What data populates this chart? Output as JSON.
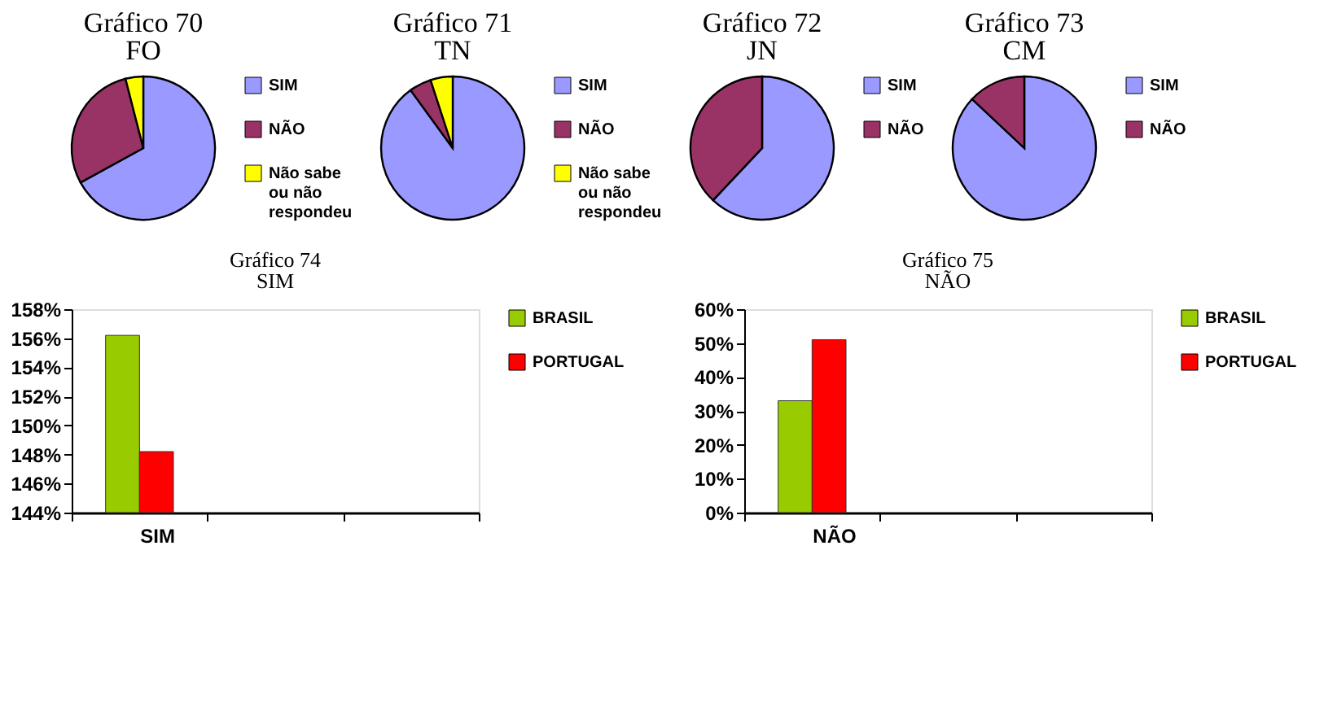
{
  "chart_data": [
    {
      "type": "pie",
      "title": "Gráfico 70",
      "subtitle": "FO",
      "categories": [
        "SIM",
        "NÃO",
        "Não sabe ou não respondeu"
      ],
      "values": [
        67,
        29,
        4
      ],
      "colors": [
        "#9999ff",
        "#993366",
        "#ffff00"
      ],
      "legend": "right"
    },
    {
      "type": "pie",
      "title": "Gráfico 71",
      "subtitle": "TN",
      "categories": [
        "SIM",
        "NÃO",
        "Não sabe ou não respondeu"
      ],
      "values": [
        90,
        5,
        5
      ],
      "colors": [
        "#9999ff",
        "#993366",
        "#ffff00"
      ],
      "legend": "right"
    },
    {
      "type": "pie",
      "title": "Gráfico 72",
      "subtitle": "JN",
      "categories": [
        "SIM",
        "NÃO"
      ],
      "values": [
        62,
        38
      ],
      "colors": [
        "#9999ff",
        "#993366"
      ],
      "legend": "right"
    },
    {
      "type": "pie",
      "title": "Gráfico 73",
      "subtitle": "CM",
      "categories": [
        "SIM",
        "NÃO"
      ],
      "values": [
        87,
        13
      ],
      "colors": [
        "#9999ff",
        "#993366"
      ],
      "legend": "right"
    },
    {
      "type": "bar",
      "title": "Gráfico 74",
      "subtitle": "SIM",
      "categories": [
        "SIM",
        null,
        null
      ],
      "series": [
        {
          "name": "BRASIL",
          "color": "#99cc00",
          "values": [
            156.2,
            null,
            null
          ]
        },
        {
          "name": "PORTUGAL",
          "color": "#ff0000",
          "values": [
            148.2,
            null,
            null
          ]
        }
      ],
      "ylim": [
        144,
        158
      ],
      "yticks": [
        {
          "value": 144,
          "label": "144%"
        },
        {
          "value": 146,
          "label": "146%"
        },
        {
          "value": 148,
          "label": "148%"
        },
        {
          "value": 150,
          "label": "150%"
        },
        {
          "value": 152,
          "label": "152%"
        },
        {
          "value": 154,
          "label": "154%"
        },
        {
          "value": 156,
          "label": "156%"
        },
        {
          "value": 158,
          "label": "158%"
        }
      ],
      "grid": false,
      "legend": "right"
    },
    {
      "type": "bar",
      "title": "Gráfico 75",
      "subtitle": "NÃO",
      "categories": [
        "NÃO",
        null,
        null
      ],
      "series": [
        {
          "name": "BRASIL",
          "color": "#99cc00",
          "values": [
            33,
            null,
            null
          ]
        },
        {
          "name": "PORTUGAL",
          "color": "#ff0000",
          "values": [
            51,
            null,
            null
          ]
        }
      ],
      "ylim": [
        0,
        60
      ],
      "yticks": [
        {
          "value": 0,
          "label": "0%"
        },
        {
          "value": 10,
          "label": "10%"
        },
        {
          "value": 20,
          "label": "20%"
        },
        {
          "value": 30,
          "label": "30%"
        },
        {
          "value": 40,
          "label": "40%"
        },
        {
          "value": 50,
          "label": "50%"
        },
        {
          "value": 60,
          "label": "60%"
        }
      ],
      "grid": false,
      "legend": "right"
    }
  ]
}
